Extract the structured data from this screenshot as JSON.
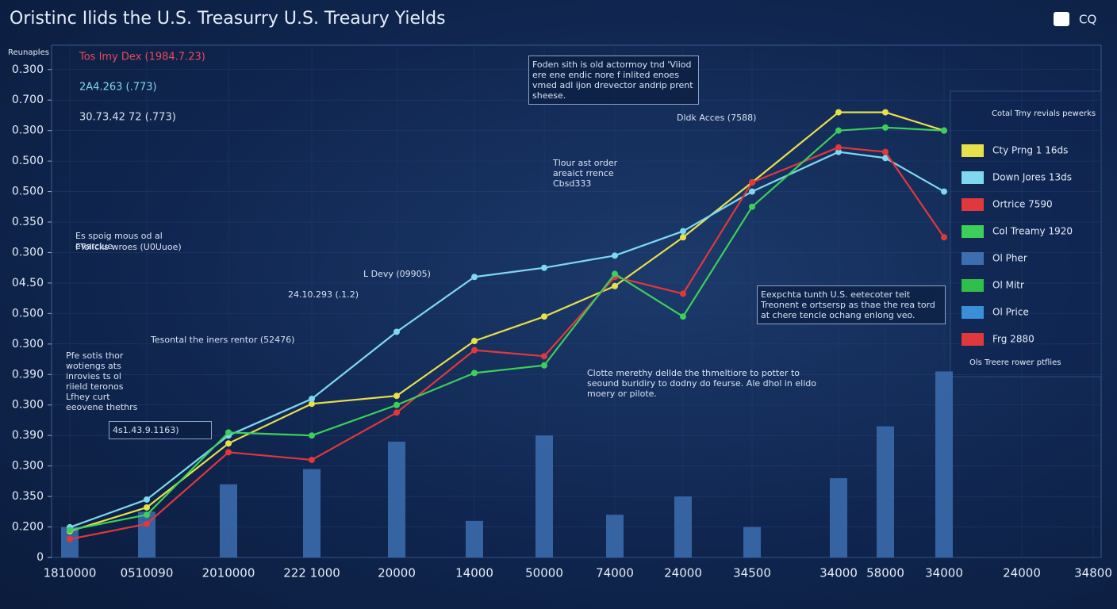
{
  "chart_data": {
    "type": "line",
    "title": "Oristinc Ilids the U.S. Treasurry U.S. Treaury Yields",
    "corner_label": "CQ",
    "axis_label": "Reunaples",
    "grid": true,
    "categories": [
      "1810000",
      "0510090",
      "2010000",
      "222 1000",
      "20000",
      "14000",
      "50000",
      "74000",
      "24000",
      "34500",
      "34000",
      "58000",
      "34000",
      "24000",
      "34800"
    ],
    "ylim": [
      0,
      16.8
    ],
    "yticks": [
      0,
      {
        "value": 1,
        "label": "0.200"
      },
      {
        "value": 2,
        "label": "0.350"
      },
      {
        "value": 3,
        "label": "0.300"
      },
      {
        "value": 4,
        "label": "0.390"
      },
      {
        "value": 5,
        "label": "0.300"
      },
      {
        "value": 6,
        "label": "0.390"
      },
      {
        "value": 7,
        "label": "0.300"
      },
      {
        "value": 8,
        "label": "0.500"
      },
      {
        "value": 9,
        "label": "04.50"
      },
      {
        "value": 10,
        "label": "0.300"
      },
      {
        "value": 11,
        "label": "0.350"
      },
      {
        "value": 12,
        "label": "0.500"
      },
      {
        "value": 13,
        "label": "0.500"
      },
      {
        "value": 14,
        "label": "0.300"
      },
      {
        "value": 15,
        "label": "0.700"
      },
      {
        "value": 16,
        "label": "0.300"
      }
    ],
    "bars": {
      "name": "Ol Pher",
      "color": "#3d6fb0",
      "values": [
        1.0,
        1.5,
        2.4,
        2.9,
        3.8,
        1.2,
        4.0,
        1.4,
        2.0,
        1.0,
        2.6,
        4.3,
        6.1,
        null,
        null
      ]
    },
    "series": [
      {
        "name": "Cty Prng 1 16ds",
        "color": "#e8e04a",
        "values": [
          0.86,
          1.64,
          3.74,
          5.04,
          5.3,
          7.1,
          7.9,
          8.9,
          10.5,
          12.3,
          14.6,
          14.6,
          14.0,
          null,
          null
        ]
      },
      {
        "name": "Down Jores 13ds",
        "color": "#7fd8f0",
        "values": [
          0.99,
          1.9,
          4.0,
          5.2,
          7.4,
          9.2,
          9.5,
          9.9,
          10.7,
          12.0,
          13.3,
          13.1,
          12.0,
          null,
          null
        ]
      },
      {
        "name": "Ortrice 7590",
        "color": "#e0383c",
        "values": [
          0.6,
          1.1,
          3.45,
          3.2,
          4.75,
          6.8,
          6.6,
          9.2,
          8.65,
          12.3,
          13.45,
          13.3,
          10.5,
          null,
          null
        ]
      },
      {
        "name": "Col Treamy 1920",
        "color": "#3ccf5a",
        "values": [
          0.9,
          1.4,
          4.1,
          4.0,
          5.0,
          6.05,
          6.3,
          9.3,
          7.9,
          11.5,
          14.0,
          14.1,
          14.0,
          null,
          null
        ]
      }
    ],
    "legend_title": "Cotal Trny revials pewerks",
    "legend_extra": [
      {
        "name": "Ol Mitr",
        "color": "#2fbf4a"
      },
      {
        "name": "Ol Price",
        "color": "#3a8fd8"
      },
      {
        "name": "Frg 2880",
        "color": "#e0383c"
      }
    ],
    "legend_footer": "Ols Treere rower ptflies",
    "left_legend": [
      {
        "text": "Tos Imy Dex (1984.7.23)",
        "color": "#e84a5a"
      },
      {
        "text": "2A4.263 (.773)",
        "color": "#7fd8f0"
      },
      {
        "text": "30.73.42 72 (.773)",
        "color": "#d8e0f0"
      }
    ],
    "annotations": [
      "Foden sith is old actormoy tnd 'Viiod ere ene endic nore f inlited enoes vmed adl ijon drevector andrip prent sheese.",
      "Dldk Acces (7588)",
      "Tlour ast order areaict rrence Cbsd333",
      "Es spoig mous od al evarclue",
      "FTolicks wroes (U0Uuoe)",
      "L Devy (09905)",
      "24.10.293 (.1.2)",
      "Tesontal the iners rentor (52476)",
      "Pfe sotis thor wotiengs ats inrovies ts ol riield teronos Lfhey curt eeovene thethrs",
      "4s1.43.9.1163)",
      "Clotte merethy dellde the thmeltiore to potter to seound buridiry to dodny do feurse. Ale dhol in elido moery or pilote.",
      "Eexpchta tunth U.S. eetecoter teit Treonent e ortsersp as thae the rea tord at chere tencle ochang enlong veo."
    ]
  }
}
